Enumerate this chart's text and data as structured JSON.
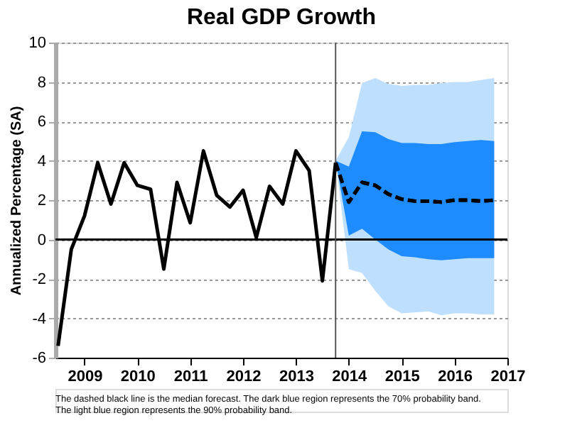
{
  "chart_data": {
    "type": "line",
    "title": "Real GDP Growth",
    "ylabel": "Annualized Percentage (SA)",
    "xlim": [
      2008.45,
      2017.0
    ],
    "xticks": [
      2009,
      2010,
      2011,
      2012,
      2013,
      2014,
      2015,
      2016,
      2017
    ],
    "ylim": [
      -6,
      10
    ],
    "yticks": [
      -6,
      -4,
      -2,
      0,
      2,
      4,
      6,
      8,
      10
    ],
    "grid": "y",
    "marker": "none",
    "series": [
      {
        "color": "#000000",
        "line_style": "solid",
        "x": [
          2008.5,
          2008.75,
          2009.0,
          2009.25,
          2009.5,
          2009.75,
          2010.0,
          2010.25,
          2010.5,
          2010.75,
          2011.0,
          2011.25,
          2011.5,
          2011.75,
          2012.0,
          2012.25,
          2012.5,
          2012.75,
          2013.0,
          2013.25,
          2013.5,
          2013.75
        ],
        "values": [
          -5.4,
          -0.5,
          1.2,
          3.9,
          1.8,
          3.9,
          2.75,
          2.55,
          -1.5,
          2.9,
          0.85,
          4.5,
          2.25,
          1.65,
          2.5,
          0.1,
          2.7,
          1.8,
          4.5,
          3.5,
          -2.1,
          3.9
        ]
      },
      {
        "color": "#000000",
        "line_style": "dashed",
        "x": [
          2013.75,
          2014.0,
          2014.25,
          2014.5,
          2014.75,
          2015.0,
          2015.25,
          2015.5,
          2015.75,
          2016.0,
          2016.25,
          2016.5,
          2016.75
        ],
        "values": [
          3.9,
          1.9,
          2.9,
          2.75,
          2.3,
          2.05,
          1.95,
          1.95,
          1.9,
          2.0,
          2.0,
          1.95,
          2.0
        ],
        "lower": [
          4.0,
          -1.5,
          -1.7,
          -2.6,
          -3.4,
          -3.75,
          -3.7,
          -3.65,
          -3.85,
          -3.75,
          -3.75,
          -3.8,
          -3.8
        ],
        "upper": [
          4.0,
          5.2,
          7.95,
          8.2,
          7.9,
          7.8,
          7.85,
          7.85,
          7.95,
          8.0,
          8.0,
          8.1,
          8.2
        ]
      },
      {
        "color": "#000000",
        "line_style": "dashed",
        "x": [
          2013.75,
          2014.0,
          2014.25,
          2014.5,
          2014.75,
          2015.0,
          2015.25,
          2015.5,
          2015.75,
          2016.0,
          2016.25,
          2016.5,
          2016.75
        ],
        "values": [
          3.9,
          1.9,
          2.9,
          2.75,
          2.3,
          2.05,
          1.95,
          1.95,
          1.9,
          2.0,
          2.0,
          1.95,
          2.0
        ],
        "lower": [
          4.0,
          0.2,
          0.55,
          0.0,
          -0.5,
          -0.85,
          -0.9,
          -1.0,
          -1.05,
          -1.0,
          -0.95,
          -0.95,
          -0.95
        ],
        "upper": [
          4.0,
          3.7,
          5.5,
          5.45,
          5.1,
          4.9,
          4.9,
          4.85,
          4.85,
          4.95,
          5.0,
          5.05,
          5.0
        ]
      }
    ],
    "ref_lines": [
      {
        "axis": "y",
        "value": 0,
        "color": "#000000"
      },
      {
        "axis": "x",
        "value": 2013.75,
        "color": "#555555"
      }
    ],
    "annotations": [
      "The dashed black line is the median forecast. The dark blue region represents the 70% probability band.",
      "The light blue region represents the 90% probability band."
    ]
  }
}
